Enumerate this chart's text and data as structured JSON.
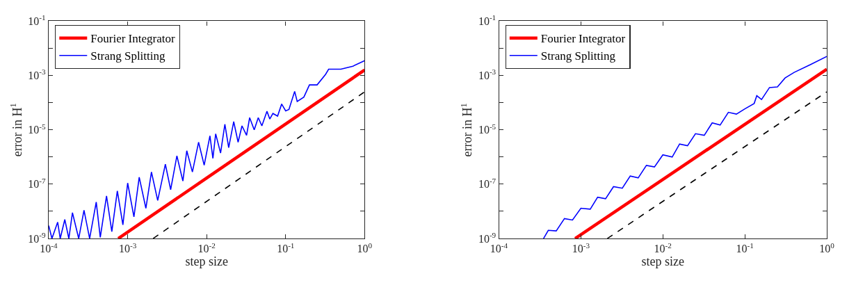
{
  "chart_data": [
    {
      "type": "line",
      "xlabel": "step size",
      "ylabel": "error in H$^{1}$",
      "log": "xy",
      "legend": "top left",
      "line_style": "solid",
      "marker": "none",
      "xlim": [
        0.0001,
        1
      ],
      "ylim": [
        1e-09,
        0.1
      ],
      "xticks": [
        {
          "value": 0.0001,
          "label": "10$^{-4}$"
        },
        {
          "value": 0.001,
          "label": "10$^{-3}$"
        },
        {
          "value": 0.01,
          "label": "10$^{-2}$"
        },
        {
          "value": 0.1,
          "label": "10$^{-1}$"
        },
        {
          "value": 1,
          "label": "10$^{0}$"
        }
      ],
      "yticks": [
        {
          "value": 1e-09,
          "label": "10$^{-9}$"
        },
        {
          "value": 1e-08,
          "label": null
        },
        {
          "value": 1e-07,
          "label": "10$^{-7}$"
        },
        {
          "value": 1e-06,
          "label": null
        },
        {
          "value": 1e-05,
          "label": "10$^{-5}$"
        },
        {
          "value": 0.0001,
          "label": null
        },
        {
          "value": 0.001,
          "label": "10$^{-3}$"
        },
        {
          "value": 0.01,
          "label": null
        },
        {
          "value": 0.1,
          "label": "10$^{-1}$"
        }
      ],
      "series": [
        {
          "name": "Fourier Integrator",
          "color": "#ff0000",
          "x": [
            0.00076,
            1
          ],
          "values": [
            1e-09,
            0.0016
          ]
        },
        {
          "name": "Strang Splitting",
          "color": "#0000ff",
          "x": [
            0.0001,
            0.00011,
            0.00013,
            0.00014,
            0.00016,
            0.00018,
            0.0002,
            0.00024,
            0.00028,
            0.00033,
            0.0004,
            0.00045,
            0.00054,
            0.00063,
            0.00074,
            0.00087,
            0.001,
            0.0012,
            0.0014,
            0.0017,
            0.002,
            0.0024,
            0.003,
            0.0035,
            0.0042,
            0.005,
            0.0056,
            0.0066,
            0.0079,
            0.0093,
            0.011,
            0.012,
            0.013,
            0.015,
            0.017,
            0.019,
            0.022,
            0.025,
            0.028,
            0.032,
            0.035,
            0.04,
            0.045,
            0.05,
            0.058,
            0.063,
            0.069,
            0.079,
            0.089,
            0.1,
            0.11,
            0.13,
            0.14,
            0.17,
            0.2,
            0.25,
            0.32,
            0.35,
            0.5,
            0.71,
            1
          ],
          "values": [
            3e-09,
            1e-09,
            4e-09,
            1e-09,
            5e-09,
            1e-09,
            8.9e-09,
            1e-09,
            1.1e-08,
            1e-09,
            2.2e-08,
            1.1e-09,
            3.7e-08,
            1.8e-09,
            5.6e-08,
            3.2e-09,
            1.1e-07,
            6.3e-09,
            1.8e-07,
            1.3e-08,
            2.8e-07,
            2.5e-08,
            5.4e-07,
            6.3e-08,
            1.1e-06,
            1.3e-07,
            1.7e-06,
            2.8e-07,
            3.5e-06,
            5e-07,
            6e-06,
            8.9e-07,
            7.1e-06,
            1.4e-06,
            1.6e-05,
            2.2e-06,
            2e-05,
            3.5e-06,
            1.4e-05,
            6.3e-06,
            2.8e-05,
            1e-05,
            2.8e-05,
            1.4e-05,
            4.8e-05,
            2.5e-05,
            4e-05,
            3.2e-05,
            8.9e-05,
            5e-05,
            5.6e-05,
            0.00026,
            0.00011,
            0.00016,
            0.00045,
            0.00045,
            0.0011,
            0.0017,
            0.0017,
            0.0022,
            0.0035
          ]
        },
        {
          "color": "#000000",
          "line_style": "dashed",
          "x": [
            0.0021,
            1
          ],
          "values": [
            1e-09,
            0.00025
          ]
        }
      ]
    },
    {
      "type": "line",
      "xlabel": "step size",
      "ylabel": "error in H$^{1}$",
      "log": "xy",
      "legend": "top left",
      "line_style": "solid",
      "marker": "none",
      "xlim": [
        0.0001,
        1
      ],
      "ylim": [
        1e-09,
        0.1
      ],
      "xticks": [
        {
          "value": 0.0001,
          "label": "10$^{-4}$"
        },
        {
          "value": 0.001,
          "label": "10$^{-3}$"
        },
        {
          "value": 0.01,
          "label": "10$^{-2}$"
        },
        {
          "value": 0.1,
          "label": "10$^{-1}$"
        },
        {
          "value": 1,
          "label": "10$^{0}$"
        }
      ],
      "yticks": [
        {
          "value": 1e-09,
          "label": "10$^{-9}$"
        },
        {
          "value": 1e-08,
          "label": null
        },
        {
          "value": 1e-07,
          "label": "10$^{-7}$"
        },
        {
          "value": 1e-06,
          "label": null
        },
        {
          "value": 1e-05,
          "label": "10$^{-5}$"
        },
        {
          "value": 0.0001,
          "label": null
        },
        {
          "value": 0.001,
          "label": "10$^{-3}$"
        },
        {
          "value": 0.01,
          "label": null
        },
        {
          "value": 0.1,
          "label": "10$^{-1}$"
        }
      ],
      "series": [
        {
          "name": "Fourier Integrator",
          "color": "#ff0000",
          "x": [
            0.00085,
            1
          ],
          "values": [
            1e-09,
            0.0017
          ]
        },
        {
          "name": "Strang Splitting",
          "color": "#0000ff",
          "x": [
            0.00035,
            0.0004,
            0.0005,
            0.00063,
            0.00079,
            0.001,
            0.0013,
            0.0016,
            0.002,
            0.0025,
            0.0032,
            0.004,
            0.005,
            0.0063,
            0.0079,
            0.01,
            0.013,
            0.016,
            0.02,
            0.025,
            0.032,
            0.04,
            0.05,
            0.063,
            0.079,
            0.1,
            0.13,
            0.14,
            0.16,
            0.2,
            0.25,
            0.31,
            0.4,
            0.63,
            1
          ],
          "values": [
            1e-09,
            2e-09,
            1.9e-09,
            5.4e-09,
            4.8e-09,
            1.3e-08,
            1.2e-08,
            3.3e-08,
            2.9e-08,
            8.1e-08,
            7.1e-08,
            2e-07,
            1.7e-07,
            4.9e-07,
            4.3e-07,
            1.2e-06,
            1e-06,
            3e-06,
            2.6e-06,
            7.2e-06,
            6.3e-06,
            1.8e-05,
            1.5e-05,
            4.4e-05,
            3.8e-05,
            5.9e-05,
            9.3e-05,
            0.00018,
            0.00013,
            0.00036,
            0.00038,
            0.00081,
            0.0013,
            0.0025,
            0.005
          ]
        },
        {
          "color": "#000000",
          "line_style": "dashed",
          "x": [
            0.0021,
            1
          ],
          "values": [
            1e-09,
            0.00025
          ]
        }
      ]
    }
  ]
}
